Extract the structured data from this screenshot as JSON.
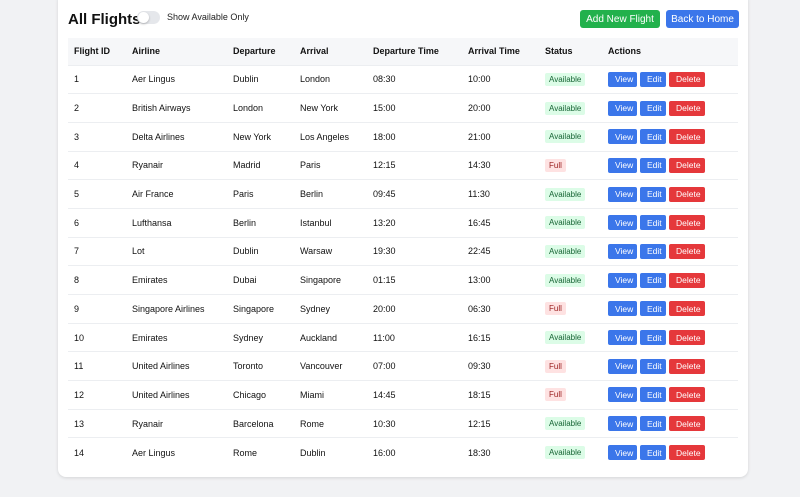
{
  "header": {
    "title": "All Flights",
    "toggle_label": "Show Available Only",
    "toggle_on": false,
    "add_label": "Add New Flight",
    "home_label": "Back to Home"
  },
  "colors": {
    "add": "#22b14c",
    "primary": "#3b76ea",
    "danger": "#e5383b",
    "available_bg": "#dcfce7",
    "full_bg": "#fee2e2"
  },
  "columns": [
    "Flight ID",
    "Airline",
    "Departure",
    "Arrival",
    "Departure Time",
    "Arrival Time",
    "Status",
    "Actions"
  ],
  "actions": {
    "view": "View",
    "edit": "Edit",
    "delete": "Delete"
  },
  "rows": [
    [
      "1",
      "Aer Lingus",
      "Dublin",
      "London",
      "08:30",
      "10:00",
      "Available"
    ],
    [
      "2",
      "British Airways",
      "London",
      "New York",
      "15:00",
      "20:00",
      "Available"
    ],
    [
      "3",
      "Delta Airlines",
      "New York",
      "Los Angeles",
      "18:00",
      "21:00",
      "Available"
    ],
    [
      "4",
      "Ryanair",
      "Madrid",
      "Paris",
      "12:15",
      "14:30",
      "Full"
    ],
    [
      "5",
      "Air France",
      "Paris",
      "Berlin",
      "09:45",
      "11:30",
      "Available"
    ],
    [
      "6",
      "Lufthansa",
      "Berlin",
      "Istanbul",
      "13:20",
      "16:45",
      "Available"
    ],
    [
      "7",
      "Lot",
      "Dublin",
      "Warsaw",
      "19:30",
      "22:45",
      "Available"
    ],
    [
      "8",
      "Emirates",
      "Dubai",
      "Singapore",
      "01:15",
      "13:00",
      "Available"
    ],
    [
      "9",
      "Singapore Airlines",
      "Singapore",
      "Sydney",
      "20:00",
      "06:30",
      "Full"
    ],
    [
      "10",
      "Emirates",
      "Sydney",
      "Auckland",
      "11:00",
      "16:15",
      "Available"
    ],
    [
      "11",
      "United Airlines",
      "Toronto",
      "Vancouver",
      "07:00",
      "09:30",
      "Full"
    ],
    [
      "12",
      "United Airlines",
      "Chicago",
      "Miami",
      "14:45",
      "18:15",
      "Full"
    ],
    [
      "13",
      "Ryanair",
      "Barcelona",
      "Rome",
      "10:30",
      "12:15",
      "Available"
    ],
    [
      "14",
      "Aer Lingus",
      "Rome",
      "Dublin",
      "16:00",
      "18:30",
      "Available"
    ]
  ]
}
